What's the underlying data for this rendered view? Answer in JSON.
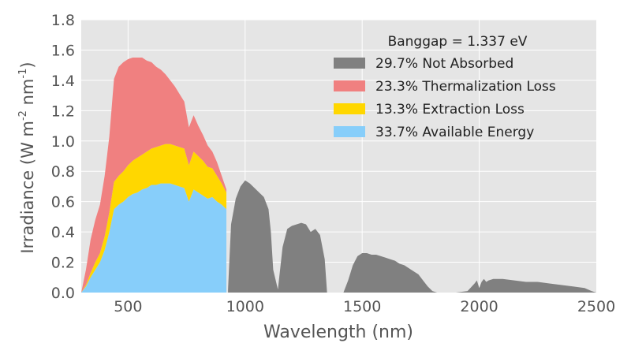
{
  "chart_data": {
    "type": "area",
    "xlabel": "Wavelength (nm)",
    "ylabel_main": "Irradiance  (W m",
    "ylabel_sup1": "-2",
    "ylabel_mid": " nm",
    "ylabel_sup2": "-1",
    "ylabel_end": ")",
    "xlim": [
      300,
      2500
    ],
    "ylim": [
      0.0,
      1.8
    ],
    "xticks": [
      500,
      1000,
      1500,
      2000,
      2500
    ],
    "xtick_labels": [
      "500",
      "1000",
      "1500",
      "2000",
      "2500"
    ],
    "yticks": [
      0.0,
      0.2,
      0.4,
      0.6,
      0.8,
      1.0,
      1.2,
      1.4,
      1.6,
      1.8
    ],
    "ytick_labels": [
      "0.0",
      "0.2",
      "0.4",
      "0.6",
      "0.8",
      "1.0",
      "1.2",
      "1.4",
      "1.6",
      "1.8"
    ],
    "grid": true,
    "stacked": true,
    "legend_title": "Banggap = 1.337 eV",
    "legend_position": "top-right",
    "colors": {
      "background": "#e5e5e5",
      "grid": "#ffffff",
      "text": "#555555",
      "not_absorbed": "#808080",
      "thermalization": "#f08080",
      "extraction": "#ffd700",
      "available": "#87cefa"
    },
    "legend": [
      {
        "label": "29.7% Not Absorbed",
        "color": "#808080"
      },
      {
        "label": "23.3% Thermalization Loss",
        "color": "#f08080"
      },
      {
        "label": "13.3% Extraction Loss",
        "color": "#ffd700"
      },
      {
        "label": "33.7% Available Energy",
        "color": "#87cefa"
      }
    ],
    "absorption_edge_nm": 927,
    "x": [
      300,
      320,
      340,
      360,
      380,
      400,
      420,
      440,
      460,
      480,
      500,
      520,
      540,
      560,
      580,
      600,
      620,
      640,
      660,
      680,
      700,
      720,
      740,
      760,
      780,
      800,
      820,
      840,
      860,
      880,
      900,
      920
    ],
    "series": [
      {
        "name": "Available Energy",
        "values": [
          0.0,
          0.04,
          0.1,
          0.15,
          0.2,
          0.28,
          0.4,
          0.55,
          0.58,
          0.6,
          0.63,
          0.65,
          0.66,
          0.68,
          0.69,
          0.71,
          0.71,
          0.72,
          0.72,
          0.72,
          0.71,
          0.7,
          0.69,
          0.6,
          0.68,
          0.66,
          0.64,
          0.62,
          0.63,
          0.6,
          0.58,
          0.55
        ]
      },
      {
        "name": "Extraction Loss",
        "values": [
          0.0,
          0.01,
          0.03,
          0.05,
          0.06,
          0.09,
          0.13,
          0.18,
          0.19,
          0.2,
          0.21,
          0.22,
          0.23,
          0.23,
          0.24,
          0.24,
          0.25,
          0.25,
          0.26,
          0.26,
          0.26,
          0.26,
          0.26,
          0.24,
          0.25,
          0.24,
          0.23,
          0.21,
          0.19,
          0.17,
          0.14,
          0.11
        ]
      },
      {
        "name": "Thermalization Loss",
        "values": [
          0.0,
          0.1,
          0.22,
          0.28,
          0.32,
          0.4,
          0.5,
          0.68,
          0.72,
          0.72,
          0.7,
          0.68,
          0.66,
          0.64,
          0.6,
          0.57,
          0.53,
          0.5,
          0.46,
          0.42,
          0.39,
          0.35,
          0.31,
          0.25,
          0.24,
          0.2,
          0.17,
          0.14,
          0.11,
          0.09,
          0.05,
          0.02
        ]
      }
    ],
    "not_absorbed_x": [
      927,
      940,
      960,
      980,
      1000,
      1020,
      1040,
      1060,
      1080,
      1100,
      1110,
      1120,
      1140,
      1160,
      1180,
      1200,
      1220,
      1240,
      1260,
      1280,
      1300,
      1320,
      1340,
      1350,
      1360,
      1380,
      1400,
      1420,
      1440,
      1460,
      1480,
      1500,
      1520,
      1540,
      1560,
      1580,
      1600,
      1620,
      1640,
      1660,
      1680,
      1700,
      1720,
      1740,
      1760,
      1780,
      1800,
      1820,
      1850,
      1900,
      1950,
      1980,
      1990,
      2000,
      2010,
      2020,
      2030,
      2040,
      2060,
      2080,
      2100,
      2150,
      2200,
      2250,
      2300,
      2350,
      2400,
      2450,
      2480,
      2500
    ],
    "not_absorbed_y": [
      0.02,
      0.45,
      0.62,
      0.7,
      0.74,
      0.72,
      0.69,
      0.66,
      0.63,
      0.55,
      0.4,
      0.15,
      0.02,
      0.3,
      0.42,
      0.44,
      0.45,
      0.46,
      0.45,
      0.4,
      0.42,
      0.38,
      0.22,
      0.0,
      0.0,
      0.0,
      0.0,
      0.0,
      0.08,
      0.18,
      0.24,
      0.26,
      0.26,
      0.25,
      0.25,
      0.24,
      0.23,
      0.22,
      0.21,
      0.19,
      0.18,
      0.16,
      0.14,
      0.12,
      0.08,
      0.04,
      0.01,
      0.0,
      0.0,
      0.0,
      0.01,
      0.06,
      0.08,
      0.03,
      0.07,
      0.09,
      0.07,
      0.08,
      0.09,
      0.09,
      0.09,
      0.08,
      0.07,
      0.07,
      0.06,
      0.05,
      0.04,
      0.03,
      0.01,
      0.0
    ]
  }
}
